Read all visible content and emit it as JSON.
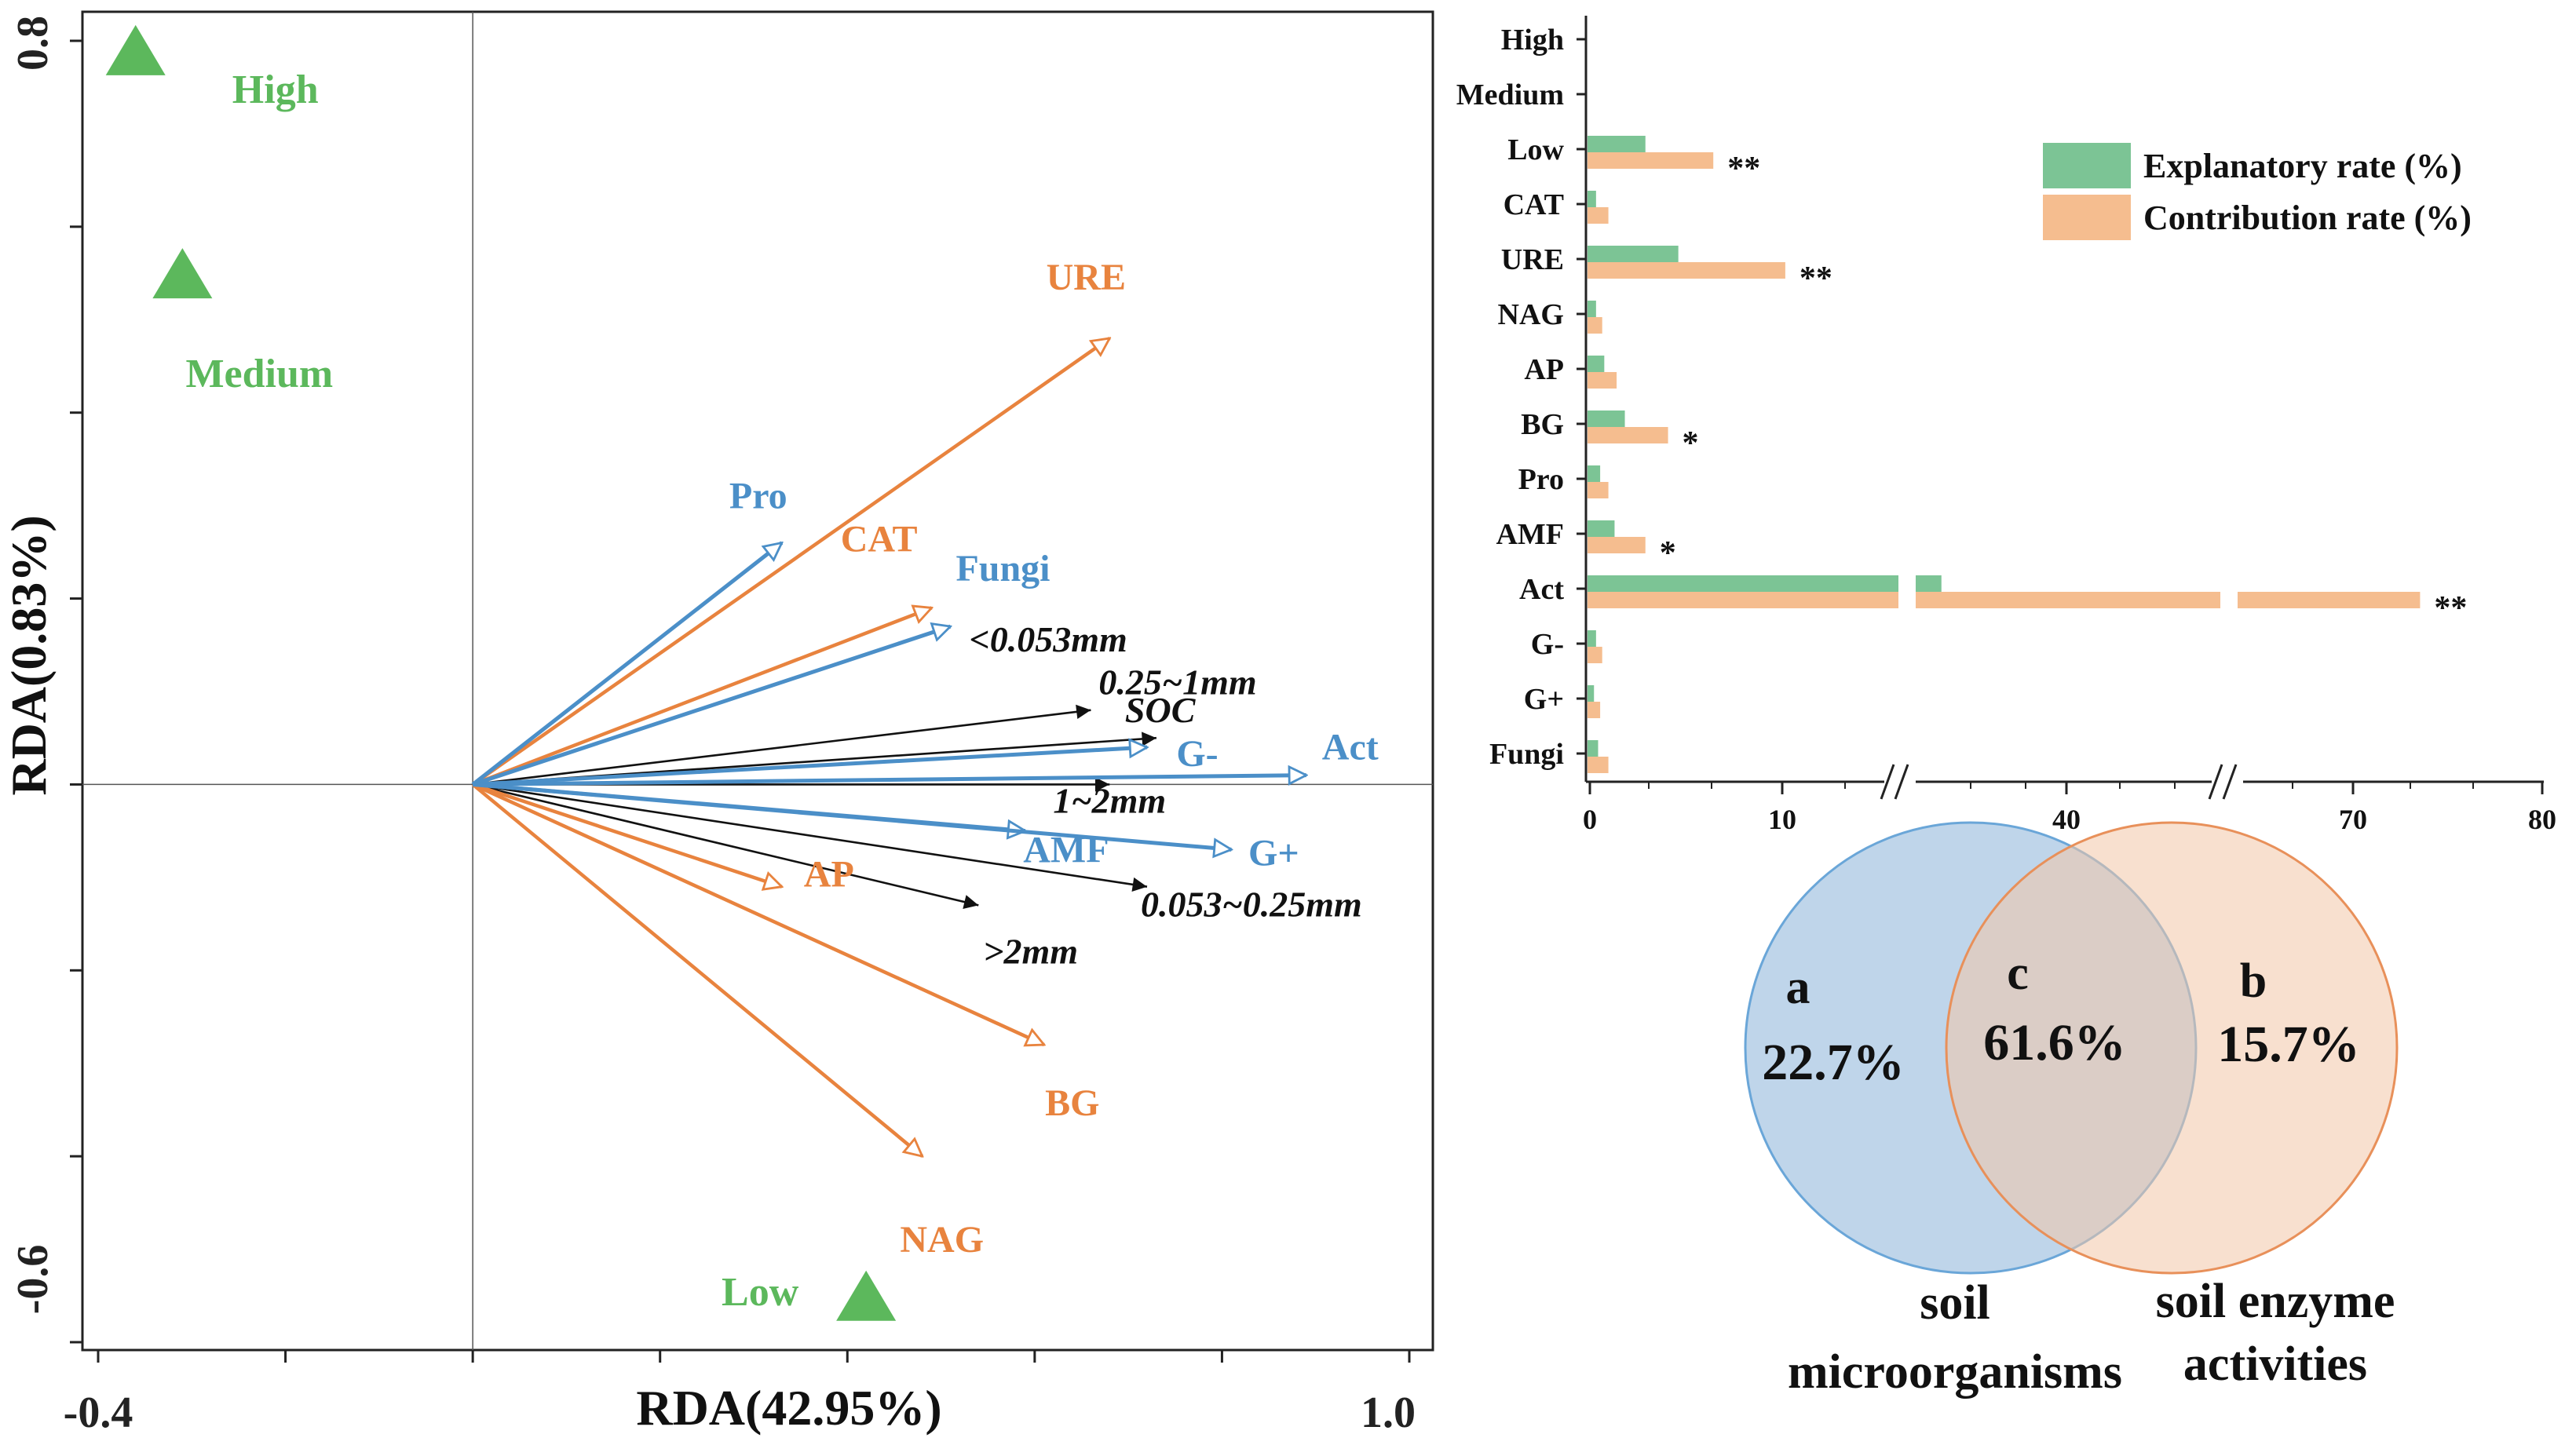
{
  "chart_data": [
    {
      "type": "scatter",
      "subtype": "rda-biplot",
      "xlabel": "RDA(42.95%)",
      "ylabel": "RDA(0.83%)",
      "xlim": [
        -0.4,
        1.0
      ],
      "ylim": [
        -0.6,
        0.8
      ],
      "x_tick_labels": [
        "-0.4",
        "1.0"
      ],
      "y_tick_labels": [
        "0.8",
        "-0.6"
      ],
      "x_ticks": [
        -0.4,
        -0.2,
        0.0,
        0.2,
        0.4,
        0.6,
        0.8,
        1.0
      ],
      "y_ticks": [
        0.8,
        0.6,
        0.4,
        0.2,
        0.0,
        -0.2,
        -0.4,
        -0.6
      ],
      "sites": [
        {
          "name": "High",
          "x": -0.36,
          "y": 0.79
        },
        {
          "name": "Medium",
          "x": -0.31,
          "y": 0.55
        },
        {
          "name": "Low",
          "x": 0.42,
          "y": -0.55
        }
      ],
      "enzyme_vectors": [
        {
          "name": "URE",
          "x": 0.68,
          "y": 0.48
        },
        {
          "name": "CAT",
          "x": 0.49,
          "y": 0.19
        },
        {
          "name": "AP",
          "x": 0.33,
          "y": -0.11
        },
        {
          "name": "BG",
          "x": 0.61,
          "y": -0.28
        },
        {
          "name": "NAG",
          "x": 0.48,
          "y": -0.4
        }
      ],
      "microbe_vectors": [
        {
          "name": "Pro",
          "x": 0.33,
          "y": 0.26
        },
        {
          "name": "Fungi",
          "x": 0.51,
          "y": 0.17
        },
        {
          "name": "G-",
          "x": 0.72,
          "y": 0.04
        },
        {
          "name": "Act",
          "x": 0.89,
          "y": 0.01
        },
        {
          "name": "AMF",
          "x": 0.59,
          "y": -0.05
        },
        {
          "name": "G+",
          "x": 0.81,
          "y": -0.07
        }
      ],
      "soil_vectors": [
        {
          "name": "<0.053mm",
          "label": "<0.053mm",
          "x": 0.51,
          "y": 0.17
        },
        {
          "name": "0.25~1mm",
          "label": "0.25~1mm",
          "x": 0.66,
          "y": 0.08
        },
        {
          "name": "SOC",
          "label": "SOC",
          "x": 0.73,
          "y": 0.05
        },
        {
          "name": "1~2mm",
          "label": "1~2mm",
          "x": 0.68,
          "y": 0.0
        },
        {
          "name": "0.053~0.25mm",
          "label": "0.053~0.25mm",
          "x": 0.72,
          "y": -0.11
        },
        {
          "name": ">2mm",
          "label": ">2mm",
          "x": 0.54,
          "y": -0.13
        }
      ],
      "colors": {
        "enzyme": "#e8833e",
        "microbe": "#4b8fc8",
        "soil": "#111111",
        "site": "#5cb85c"
      }
    },
    {
      "type": "bar",
      "orientation": "horizontal",
      "categories": [
        "High",
        "Medium",
        "Low",
        "CAT",
        "URE",
        "NAG",
        "AP",
        "BG",
        "Pro",
        "AMF",
        "Act",
        "G-",
        "G+",
        "Fungi"
      ],
      "series": [
        {
          "name": "Explanatory rate (%)",
          "color": "#7cc495",
          "values": [
            0,
            0,
            2.7,
            0.3,
            4.3,
            0.3,
            0.7,
            1.7,
            0.5,
            1.2,
            33.5,
            0.3,
            0.2,
            0.4
          ]
        },
        {
          "name": "Contribution rate (%)",
          "color": "#f5bd8f",
          "values": [
            0,
            0,
            6.0,
            0.9,
            9.5,
            0.6,
            1.3,
            3.8,
            0.9,
            2.7,
            74.0,
            0.6,
            0.5,
            0.9
          ]
        }
      ],
      "significance": [
        "",
        "",
        "**",
        "",
        "**",
        "",
        "",
        "*",
        "",
        "*",
        "**",
        "",
        "",
        ""
      ],
      "x_ticks": [
        0,
        10,
        40,
        70,
        80
      ],
      "x_tick_labels": [
        "0",
        "10",
        "40",
        "70",
        "80"
      ],
      "axis_breaks": [
        [
          15,
          32
        ],
        [
          48,
          65
        ]
      ],
      "xlim": [
        0,
        80
      ],
      "legend": [
        "Explanatory rate (%)",
        "Contribution rate (%)"
      ],
      "legend_position": "top-right"
    },
    {
      "type": "venn",
      "sets": [
        {
          "name": "soil microorganisms",
          "label_lines": [
            "soil",
            "microorganisms"
          ],
          "region": "a",
          "value": "22.7%",
          "color": "#b8d0e8"
        },
        {
          "name": "soil enzyme activities",
          "label_lines": [
            "soil enzyme",
            "activities"
          ],
          "region": "b",
          "value": "15.7%",
          "color": "#f2c6a8"
        }
      ],
      "intersection": {
        "region": "c",
        "value": "61.6%"
      }
    }
  ]
}
